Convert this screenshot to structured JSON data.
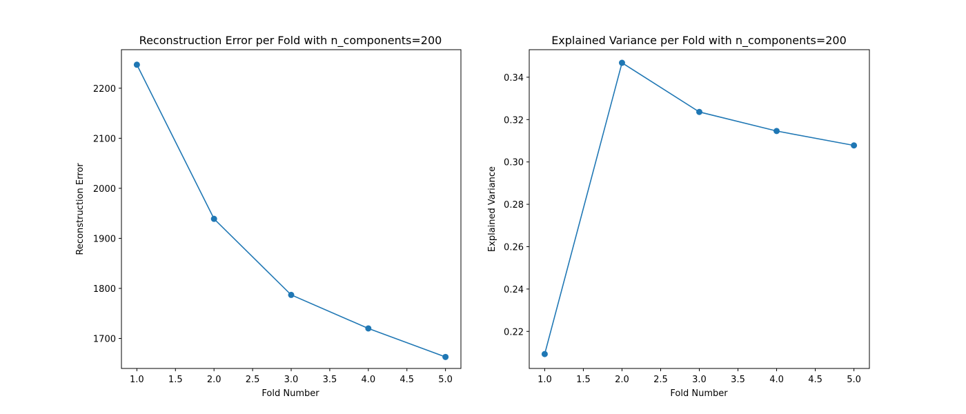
{
  "chart_data": [
    {
      "type": "line",
      "title": "Reconstruction Error per Fold with n_components=200",
      "xlabel": "Fold Number",
      "ylabel": "Reconstruction Error",
      "xlim": [
        0.8,
        5.2
      ],
      "ylim": [
        1640,
        2277
      ],
      "x_ticks": [
        1.0,
        1.5,
        2.0,
        2.5,
        3.0,
        3.5,
        4.0,
        4.5,
        5.0
      ],
      "x_tick_labels": [
        "1.0",
        "1.5",
        "2.0",
        "2.5",
        "3.0",
        "3.5",
        "4.0",
        "4.5",
        "5.0"
      ],
      "y_ticks": [
        1700,
        1800,
        1900,
        2000,
        2100,
        2200
      ],
      "y_tick_labels": [
        "1700",
        "1800",
        "1900",
        "2000",
        "2100",
        "2200"
      ],
      "grid": false,
      "marker": "circle",
      "color": "#1f77b4",
      "x": [
        1,
        2,
        3,
        4,
        5
      ],
      "y": [
        2247,
        1939,
        1787,
        1720,
        1663
      ]
    },
    {
      "type": "line",
      "title": "Explained Variance per Fold with n_components=200",
      "xlabel": "Fold Number",
      "ylabel": "Explained Variance",
      "xlim": [
        0.8,
        5.2
      ],
      "ylim": [
        0.2025,
        0.353
      ],
      "x_ticks": [
        1.0,
        1.5,
        2.0,
        2.5,
        3.0,
        3.5,
        4.0,
        4.5,
        5.0
      ],
      "x_tick_labels": [
        "1.0",
        "1.5",
        "2.0",
        "2.5",
        "3.0",
        "3.5",
        "4.0",
        "4.5",
        "5.0"
      ],
      "y_ticks": [
        0.22,
        0.24,
        0.26,
        0.28,
        0.3,
        0.32,
        0.34
      ],
      "y_tick_labels": [
        "0.22",
        "0.24",
        "0.26",
        "0.28",
        "0.30",
        "0.32",
        "0.34"
      ],
      "grid": false,
      "marker": "circle",
      "color": "#1f77b4",
      "x": [
        1,
        2,
        3,
        4,
        5
      ],
      "y": [
        0.2093,
        0.3468,
        0.3236,
        0.3146,
        0.3078
      ]
    }
  ]
}
